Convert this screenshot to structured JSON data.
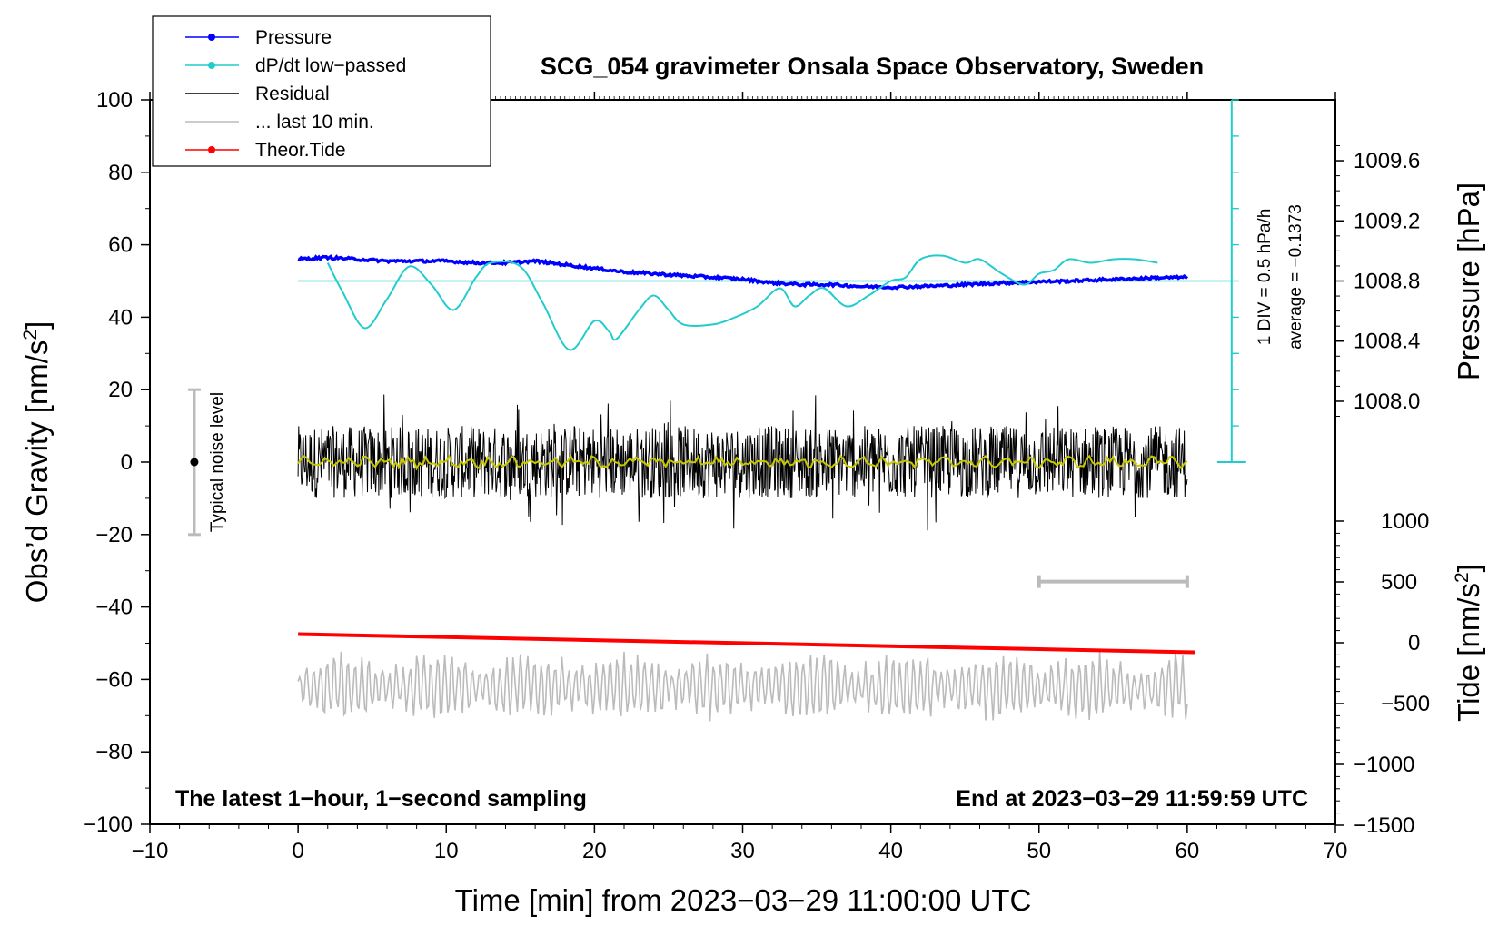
{
  "chart_data": {
    "type": "line",
    "title": "SCG_054 gravimeter Onsala Space Observatory, Sweden",
    "xlabel": "Time [min] from 2023−03−29 11:00:00 UTC",
    "ylabel_left": "Obs’d Gravity [nm/s",
    "ylabel_left_sup": "2",
    "ylabel_left_end": "]",
    "ylabel_right_pressure": "Pressure [hPa]",
    "ylabel_right_tide": "Tide [nm/s",
    "ylabel_right_tide_sup": "2",
    "ylabel_right_tide_end": "]",
    "xlim": [
      -10,
      70
    ],
    "ylim": [
      -100,
      100
    ],
    "x_ticks": [
      "−10",
      "0",
      "10",
      "20",
      "30",
      "40",
      "50",
      "60",
      "70"
    ],
    "y_ticks": [
      "100",
      "80",
      "60",
      "40",
      "20",
      "0",
      "−20",
      "−40",
      "−60",
      "−80",
      "−100"
    ],
    "pressure_ticks": [
      "1009.6",
      "1009.2",
      "1008.8",
      "1008.4",
      "1008.0"
    ],
    "pressure_tick_values": [
      1009.6,
      1009.2,
      1008.8,
      1008.4,
      1008.0
    ],
    "tide_ticks": [
      "1000",
      "500",
      "0",
      "−500",
      "−1000",
      "−1500"
    ],
    "tide_tick_values": [
      1000,
      500,
      0,
      -500,
      -1000,
      -1500
    ],
    "legend": [
      {
        "label": "Pressure",
        "color": "#0000ff",
        "marker": true
      },
      {
        "label": "dP/dt low−passed",
        "color": "#22cccc",
        "marker": true
      },
      {
        "label": "Residual",
        "color": "#000000",
        "marker": false
      },
      {
        "label": "... last 10 min.",
        "color": "#bbbbbb",
        "marker": false
      },
      {
        "label": "Theor.Tide",
        "color": "#ff0000",
        "marker": true
      }
    ],
    "noise_label": "Typical noise level",
    "noise_range": [
      -20,
      20
    ],
    "noise_x": -7,
    "dpdt_scale_label": "1 DIV = 0.5 hPa/h",
    "dpdt_average_label": "average = −0.1373",
    "dpdt_scale_x": 63,
    "dpdt_scale_range": [
      0,
      100
    ],
    "dpdt_zero_level": 50,
    "note_left": "The latest 1−hour, 1−second sampling",
    "note_right": "End at 2023−03−29 11:59:59 UTC",
    "last10_bar": [
      50,
      60
    ],
    "last10_bar_level": -33,
    "series": [
      {
        "name": "Pressure",
        "color": "#0000ff",
        "x": [
          0,
          2,
          4,
          6,
          8,
          10,
          12,
          14,
          16,
          18,
          20,
          22,
          24,
          26,
          28,
          30,
          32,
          34,
          36,
          38,
          40,
          42,
          44,
          46,
          48,
          50,
          52,
          54,
          56,
          58,
          60
        ],
        "values": [
          56,
          56.5,
          56,
          55.5,
          55.5,
          55.5,
          55,
          55,
          55.5,
          54.5,
          53.5,
          52.5,
          52,
          51.5,
          51,
          50.5,
          49.5,
          49,
          49,
          48.5,
          48.3,
          48.5,
          48.8,
          49.2,
          49.5,
          49.8,
          50,
          50.3,
          50.6,
          50.9,
          51
        ]
      },
      {
        "name": "dP/dt low−passed",
        "color": "#22cccc",
        "x": [
          2,
          3,
          4.5,
          6,
          7.5,
          9,
          10.5,
          12,
          13,
          15,
          16.5,
          18.3,
          20,
          21,
          21.5,
          23,
          24,
          25,
          26,
          28,
          29.5,
          31,
          32.5,
          33.5,
          34.5,
          35.5,
          37,
          38.5,
          40,
          41,
          42,
          43.5,
          45,
          46,
          47.5,
          49,
          50,
          51,
          52,
          53.5,
          55,
          56.5,
          58
        ],
        "values": [
          55,
          47,
          37,
          45,
          54,
          49,
          42,
          51,
          55,
          54,
          44,
          31,
          39,
          36,
          34,
          42,
          46,
          42,
          38,
          38,
          40,
          43,
          48,
          43,
          46,
          48,
          43,
          46,
          50,
          51,
          56,
          57,
          55,
          56,
          52,
          49,
          52,
          53,
          56,
          55,
          56,
          56,
          55
        ]
      },
      {
        "name": "Residual",
        "color": "#000000",
        "x_range": [
          0,
          60
        ],
        "amplitude": 10,
        "mean": 0
      },
      {
        "name": "Residual smoothed",
        "color": "#c8c800",
        "x_range": [
          0,
          60
        ],
        "mean": 0
      },
      {
        "name": "... last 10 min.",
        "color": "#bbbbbb",
        "x_range": [
          0,
          60
        ],
        "mean": -62,
        "amplitude": 8
      },
      {
        "name": "Theor.Tide",
        "color": "#ff0000",
        "x": [
          0,
          60.5
        ],
        "values": [
          -47.5,
          -52.5
        ]
      }
    ]
  }
}
